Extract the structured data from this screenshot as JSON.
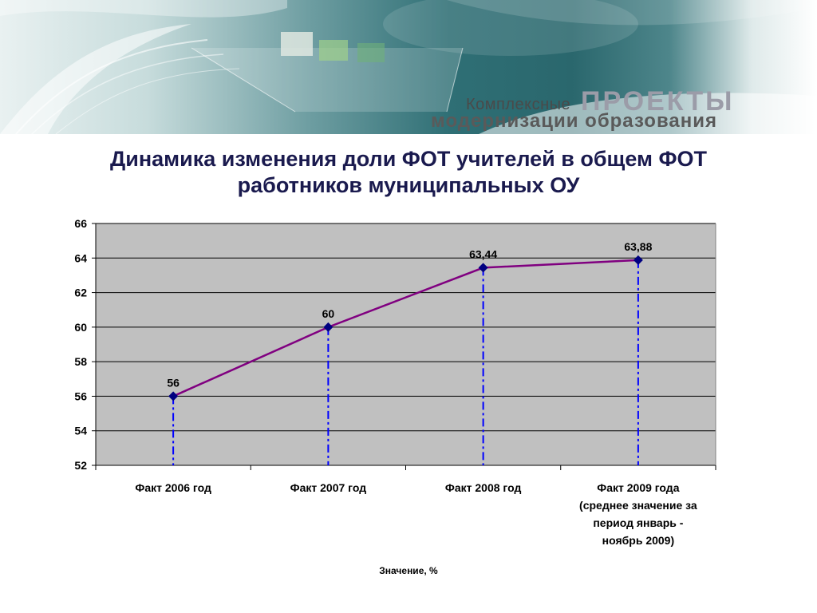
{
  "branding": {
    "line1_small": "Комплексные",
    "line1_big": "ПРОЕКТЫ",
    "line2": "модернизации образования"
  },
  "title_line1": "Динамика изменения доли ФОТ учителей в общем ФОТ",
  "title_line2": "работников муниципальных ОУ",
  "chart_data": {
    "type": "line",
    "categories": [
      "Факт 2006 год",
      "Факт 2007 год",
      "Факт 2008 год",
      "Факт 2009 года (среднее значение за период январь - ноябрь 2009)"
    ],
    "category_lines": [
      [
        "Факт 2006 год"
      ],
      [
        "Факт 2007 год"
      ],
      [
        "Факт 2008 год"
      ],
      [
        "Факт 2009 года",
        "(среднее значение за",
        "период январь -",
        "ноябрь 2009)"
      ]
    ],
    "series": [
      {
        "values": [
          56,
          60,
          63.44,
          63.88
        ]
      }
    ],
    "data_labels": [
      "56",
      "60",
      "63,44",
      "63,88"
    ],
    "yticks": [
      "52",
      "54",
      "56",
      "58",
      "60",
      "62",
      "64",
      "66"
    ],
    "ylim": [
      52,
      66
    ],
    "ystep": 2,
    "xlabel": "Значение, %",
    "ylabel": "",
    "grid": true,
    "drop_lines": true,
    "colors": {
      "line": "#800080",
      "marker": "#000080",
      "drop_line": "#0000ff",
      "plot_bg": "#c0c0c0",
      "title": "#1a1a4e"
    }
  }
}
